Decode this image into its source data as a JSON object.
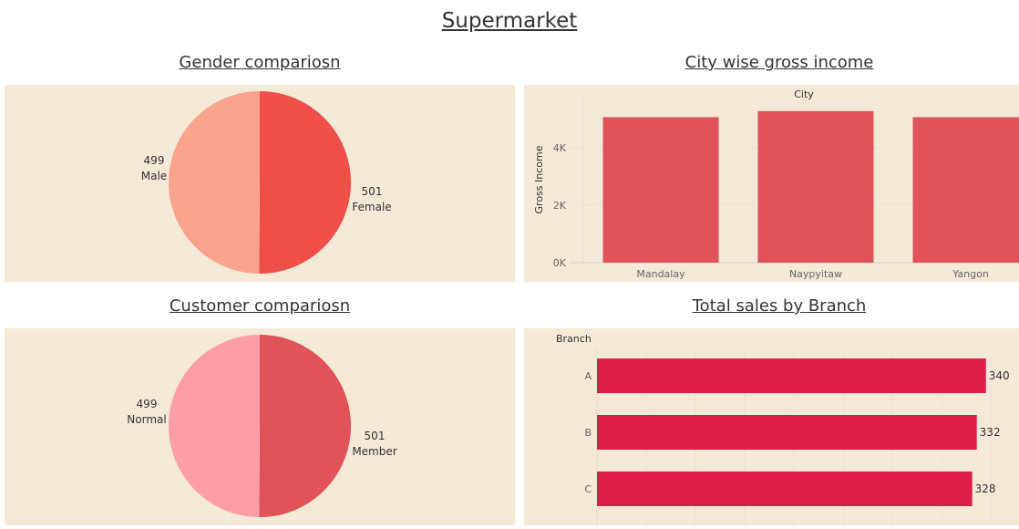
{
  "dashboard": {
    "title": "Supermarket"
  },
  "panels": {
    "gender": {
      "title": "Gender compariosn"
    },
    "city": {
      "title": "City wise gross income"
    },
    "customer": {
      "title": "Customer compariosn"
    },
    "branch": {
      "title": "Total sales by Branch"
    }
  },
  "colors": {
    "panel_bg": "#f4e8d7",
    "male": "#f9a28c",
    "female": "#ee5049",
    "normal": "#fd9ea6",
    "member": "#e05358",
    "city_bar": "#e05358",
    "branch_bar": "#dc1d45"
  },
  "chart_data": [
    {
      "type": "pie",
      "title": "Gender compariosn",
      "categories": [
        "Female",
        "Male"
      ],
      "values": [
        501,
        499
      ]
    },
    {
      "type": "bar",
      "title": "City wise gross income",
      "header": "City",
      "categories": [
        "Mandalay",
        "Naypyitaw",
        "Yangon"
      ],
      "values": [
        5057,
        5265,
        5057
      ],
      "ylabel": "Gross Income",
      "yticks": [
        "0K",
        "2K",
        "4K"
      ],
      "ylim": [
        0,
        5800
      ]
    },
    {
      "type": "pie",
      "title": "Customer compariosn",
      "categories": [
        "Member",
        "Normal"
      ],
      "values": [
        501,
        499
      ]
    },
    {
      "type": "bar",
      "orientation": "horizontal",
      "title": "Total sales by Branch",
      "header": "Branch",
      "categories": [
        "A",
        "B",
        "C"
      ],
      "values": [
        340,
        332,
        328
      ],
      "xlim": [
        0,
        345
      ]
    }
  ]
}
